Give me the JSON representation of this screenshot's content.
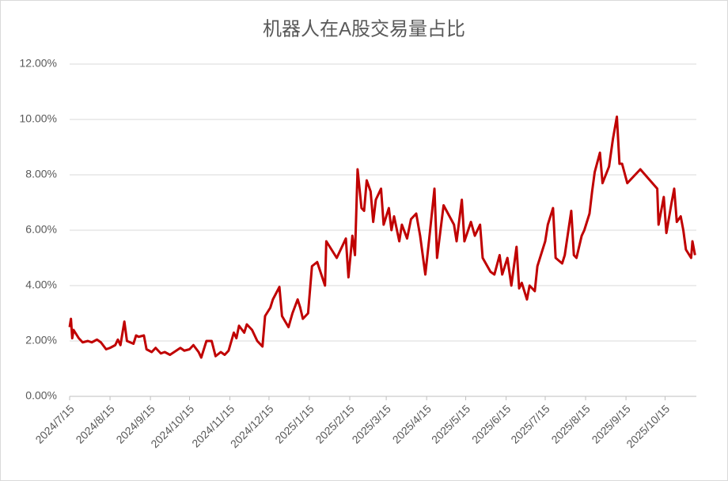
{
  "chart_data": {
    "type": "line",
    "title": "机器人在A股交易量占比",
    "x": [
      "2024/7/15",
      "2024/7/16",
      "2024/7/17",
      "2024/7/18",
      "2024/7/22",
      "2024/7/25",
      "2024/7/29",
      "2024/8/1",
      "2024/8/5",
      "2024/8/8",
      "2024/8/12",
      "2024/8/15",
      "2024/8/19",
      "2024/8/21",
      "2024/8/23",
      "2024/8/26",
      "2024/8/28",
      "2024/9/2",
      "2024/9/4",
      "2024/9/6",
      "2024/9/10",
      "2024/9/12",
      "2024/9/16",
      "2024/9/19",
      "2024/9/23",
      "2024/9/26",
      "2024/9/30",
      "2024/10/8",
      "2024/10/11",
      "2024/10/15",
      "2024/10/18",
      "2024/10/22",
      "2024/10/24",
      "2024/10/28",
      "2024/11/1",
      "2024/11/4",
      "2024/11/8",
      "2024/11/11",
      "2024/11/14",
      "2024/11/18",
      "2024/11/20",
      "2024/11/22",
      "2024/11/26",
      "2024/11/28",
      "2024/12/2",
      "2024/12/6",
      "2024/12/10",
      "2024/12/12",
      "2024/12/16",
      "2024/12/18",
      "2024/12/23",
      "2024/12/25",
      "2024/12/30",
      "2025/1/2",
      "2025/1/6",
      "2025/1/8",
      "2025/1/10",
      "2025/1/14",
      "2025/1/17",
      "2025/1/21",
      "2025/1/27",
      "2025/1/28",
      "2025/2/5",
      "2025/2/10",
      "2025/2/12",
      "2025/2/14",
      "2025/2/17",
      "2025/2/19",
      "2025/2/21",
      "2025/2/24",
      "2025/2/26",
      "2025/2/28",
      "2025/3/3",
      "2025/3/5",
      "2025/3/7",
      "2025/3/11",
      "2025/3/13",
      "2025/3/17",
      "2025/3/19",
      "2025/3/21",
      "2025/3/25",
      "2025/3/27",
      "2025/3/31",
      "2025/4/3",
      "2025/4/7",
      "2025/4/10",
      "2025/4/14",
      "2025/4/17",
      "2025/4/21",
      "2025/4/23",
      "2025/4/28",
      "2025/5/6",
      "2025/5/8",
      "2025/5/12",
      "2025/5/14",
      "2025/5/19",
      "2025/5/22",
      "2025/5/26",
      "2025/5/28",
      "2025/6/3",
      "2025/6/6",
      "2025/6/10",
      "2025/6/12",
      "2025/6/16",
      "2025/6/19",
      "2025/6/23",
      "2025/6/25",
      "2025/6/27",
      "2025/7/1",
      "2025/7/3",
      "2025/7/7",
      "2025/7/9",
      "2025/7/15",
      "2025/7/17",
      "2025/7/21",
      "2025/7/23",
      "2025/7/28",
      "2025/7/30",
      "2025/8/4",
      "2025/8/6",
      "2025/8/8",
      "2025/8/12",
      "2025/8/14",
      "2025/8/18",
      "2025/8/20",
      "2025/8/22",
      "2025/8/26",
      "2025/8/28",
      "2025/9/2",
      "2025/9/5",
      "2025/9/8",
      "2025/9/10",
      "2025/9/12",
      "2025/9/16",
      "2025/9/26",
      "2025/10/9",
      "2025/10/10",
      "2025/10/14",
      "2025/10/16",
      "2025/10/20",
      "2025/10/22",
      "2025/10/24",
      "2025/10/27",
      "2025/10/29",
      "2025/10/31",
      "2025/11/4",
      "2025/11/5",
      "2025/11/7"
    ],
    "series": [
      {
        "color": "#c00000",
        "values": [
          2.5,
          2.8,
          2.1,
          2.4,
          2.1,
          1.95,
          2.0,
          1.95,
          2.05,
          1.95,
          1.7,
          1.75,
          1.85,
          2.05,
          1.85,
          2.7,
          2.0,
          1.9,
          2.2,
          2.15,
          2.2,
          1.7,
          1.6,
          1.75,
          1.55,
          1.6,
          1.5,
          1.75,
          1.65,
          1.7,
          1.85,
          1.6,
          1.4,
          2.0,
          2.0,
          1.45,
          1.6,
          1.5,
          1.65,
          2.3,
          2.1,
          2.55,
          2.3,
          2.6,
          2.4,
          2.0,
          1.8,
          2.9,
          3.2,
          3.5,
          3.95,
          2.9,
          2.5,
          3.0,
          3.5,
          3.2,
          2.8,
          3.0,
          4.7,
          4.85,
          4.0,
          5.6,
          5.0,
          5.5,
          5.7,
          4.3,
          5.8,
          5.1,
          8.2,
          6.8,
          6.7,
          7.8,
          7.4,
          6.3,
          7.1,
          7.5,
          6.2,
          6.8,
          6.0,
          6.5,
          5.6,
          6.2,
          5.7,
          6.4,
          6.6,
          5.8,
          4.4,
          5.7,
          7.5,
          5.0,
          6.9,
          6.2,
          5.6,
          7.1,
          5.6,
          6.3,
          5.8,
          6.2,
          5.0,
          4.5,
          4.4,
          5.1,
          4.4,
          5.0,
          4.0,
          5.4,
          3.9,
          4.1,
          3.5,
          4.0,
          3.8,
          4.7,
          5.6,
          6.2,
          6.8,
          5.0,
          4.8,
          5.1,
          6.7,
          5.1,
          5.0,
          5.8,
          6.0,
          6.6,
          7.4,
          8.1,
          8.8,
          7.7,
          8.3,
          9.3,
          10.1,
          8.4,
          8.4,
          7.7,
          8.2,
          7.5,
          6.2,
          7.2,
          5.9,
          7.0,
          7.5,
          6.3,
          6.5,
          6.0,
          5.3,
          5.0,
          5.6,
          5.1
        ]
      }
    ],
    "xlim": [
      "2024/7/15",
      "2025/11/8"
    ],
    "xticks": [
      "2024/7/15",
      "2024/8/15",
      "2024/9/15",
      "2024/10/15",
      "2024/11/15",
      "2024/12/15",
      "2025/1/15",
      "2025/2/15",
      "2025/3/15",
      "2025/4/15",
      "2025/5/15",
      "2025/6/15",
      "2025/7/15",
      "2025/8/15",
      "2025/9/15",
      "2025/10/15"
    ],
    "ylim": [
      0,
      12
    ],
    "yticks": [
      {
        "value": 0,
        "label": "0.00%"
      },
      {
        "value": 2,
        "label": "2.00%"
      },
      {
        "value": 4,
        "label": "4.00%"
      },
      {
        "value": 6,
        "label": "6.00%"
      },
      {
        "value": 8,
        "label": "8.00%"
      },
      {
        "value": 10,
        "label": "10.00%"
      },
      {
        "value": 12,
        "label": "12.00%"
      }
    ],
    "grid": true
  }
}
